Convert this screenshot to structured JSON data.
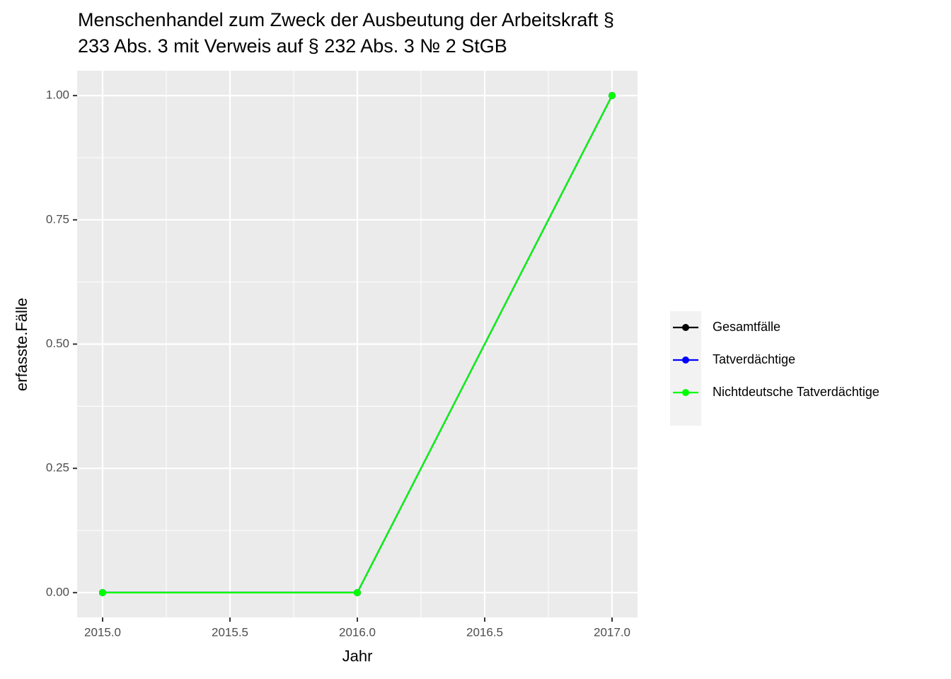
{
  "chart_data": {
    "type": "line",
    "title": [
      "Menschenhandel zum Zweck der Ausbeutung der Arbeitskraft §",
      "233 Abs. 3 mit Verweis auf § 232 Abs. 3 № 2 StGB"
    ],
    "x_label": "Jahr",
    "y_label": "erfasste.Fälle",
    "x": [
      2015,
      2016,
      2017
    ],
    "series": [
      {
        "name": "Gesamtfälle",
        "color": "#000000",
        "values": [
          0,
          0,
          1
        ]
      },
      {
        "name": "Tatverdächtige",
        "color": "#0000ff",
        "values": [
          0,
          0,
          1
        ]
      },
      {
        "name": "Nichtdeutsche Tatverdächtige",
        "color": "#00ff00",
        "values": [
          0,
          0,
          1
        ]
      }
    ],
    "xlim": [
      2014.9,
      2017.1
    ],
    "xticks": [
      {
        "value": 2015,
        "label": "2015.0"
      },
      {
        "value": 2015.5,
        "label": "2015.5"
      },
      {
        "value": 2016,
        "label": "2016.0"
      },
      {
        "value": 2016.5,
        "label": "2016.5"
      },
      {
        "value": 2017,
        "label": "2017.0"
      }
    ],
    "ylim": [
      -0.05,
      1.05
    ],
    "yticks": [
      {
        "value": 0,
        "label": "0.00"
      },
      {
        "value": 0.25,
        "label": "0.25"
      },
      {
        "value": 0.5,
        "label": "0.50"
      },
      {
        "value": 0.75,
        "label": "0.75"
      },
      {
        "value": 1,
        "label": "1.00"
      }
    ],
    "grid": true,
    "legend": "right"
  }
}
